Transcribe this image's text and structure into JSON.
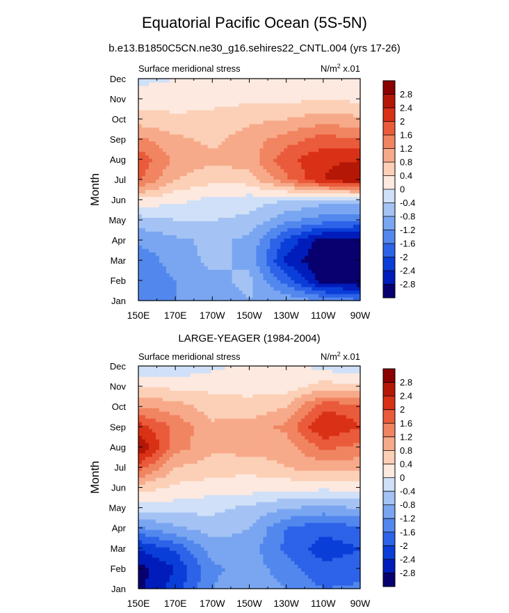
{
  "title": "Equatorial Pacific Ocean (5S-5N)",
  "subtitle": "b.e13.B1850C5CN.ne30_g16.sehires22_CNTL.004 (yrs 17-26)",
  "colors": {
    "levels": [
      "#08006e",
      "#001cbb",
      "#0a3ed8",
      "#2d63e8",
      "#5288ee",
      "#7aa6f1",
      "#a4c3f4",
      "#cfe0f8",
      "#fde9df",
      "#fcd0b7",
      "#f7aa8a",
      "#f18461",
      "#ea5b3b",
      "#d93116",
      "#b51706",
      "#8b0000"
    ]
  },
  "chart_data": [
    {
      "type": "heatmap",
      "title": "",
      "left_label": "Surface meridional stress",
      "right_label_prefix": "N/m",
      "right_label_sup": "2",
      "right_label_suffix": " x.01",
      "ylabel": "Month",
      "xlabel": "",
      "x": [
        "150E",
        "170E",
        "170W",
        "150W",
        "130W",
        "110W",
        "90W"
      ],
      "y": [
        "Jan",
        "Feb",
        "Mar",
        "Apr",
        "May",
        "Jun",
        "Jul",
        "Aug",
        "Sep",
        "Oct",
        "Nov",
        "Dec"
      ],
      "colorbar": {
        "ticks": [
          "-2.8",
          "-2.4",
          "-2",
          "-1.6",
          "-1.2",
          "-0.8",
          "-0.4",
          "0",
          "0.4",
          "0.8",
          "1.2",
          "1.6",
          "2",
          "2.4",
          "2.8"
        ],
        "bounds": [
          -3.2,
          -2.8,
          -2.4,
          -2.0,
          -1.6,
          -1.2,
          -0.8,
          -0.4,
          0,
          0.4,
          0.8,
          1.2,
          1.6,
          2.0,
          2.4,
          2.8,
          3.2
        ]
      },
      "values": [
        [
          -1.3,
          -1.2,
          -1.0,
          -0.8,
          -0.9,
          -1.2,
          -1.5
        ],
        [
          -1.6,
          -1.2,
          -0.9,
          -0.7,
          -1.8,
          -3.0,
          -3.2
        ],
        [
          -1.5,
          -1.0,
          -0.7,
          -0.9,
          -2.5,
          -3.2,
          -3.3
        ],
        [
          -1.1,
          -0.9,
          -0.7,
          -0.9,
          -2.1,
          -3.0,
          -3.0
        ],
        [
          -0.6,
          -0.4,
          -0.4,
          -0.5,
          -1.1,
          -1.4,
          -1.6
        ],
        [
          0.3,
          0.1,
          -0.1,
          -0.2,
          -0.4,
          -0.6,
          -0.5
        ],
        [
          1.7,
          0.8,
          0.5,
          0.6,
          1.5,
          2.4,
          2.8
        ],
        [
          1.9,
          1.1,
          0.9,
          1.0,
          1.9,
          2.3,
          2.4
        ],
        [
          1.3,
          0.9,
          0.7,
          1.0,
          1.4,
          1.8,
          1.6
        ],
        [
          0.6,
          0.5,
          0.5,
          0.7,
          0.8,
          1.0,
          0.9
        ],
        [
          0.2,
          0.2,
          0.3,
          0.3,
          0.3,
          0.4,
          0.3
        ],
        [
          -0.1,
          0.0,
          0.1,
          0.2,
          0.2,
          0.2,
          0.1
        ]
      ]
    },
    {
      "type": "heatmap",
      "title": "LARGE-YEAGER (1984-2004)",
      "left_label": "Surface meridional stress",
      "right_label_prefix": "N/m",
      "right_label_sup": "2",
      "right_label_suffix": " x.01",
      "ylabel": "Month",
      "xlabel": "",
      "x": [
        "150E",
        "170E",
        "170W",
        "150W",
        "130W",
        "110W",
        "90W"
      ],
      "y": [
        "Jan",
        "Feb",
        "Mar",
        "Apr",
        "May",
        "Jun",
        "Jul",
        "Aug",
        "Sep",
        "Oct",
        "Nov",
        "Dec"
      ],
      "colorbar": {
        "ticks": [
          "-2.8",
          "-2.4",
          "-2",
          "-1.6",
          "-1.2",
          "-0.8",
          "-0.4",
          "0",
          "0.4",
          "0.8",
          "1.2",
          "1.6",
          "2",
          "2.4",
          "2.8"
        ],
        "bounds": [
          -3.2,
          -2.8,
          -2.4,
          -2.0,
          -1.6,
          -1.2,
          -0.8,
          -0.4,
          0,
          0.4,
          0.8,
          1.2,
          1.6,
          2.0,
          2.4,
          2.8,
          3.2
        ]
      },
      "values": [
        [
          -2.9,
          -2.2,
          -1.2,
          -0.9,
          -1.2,
          -1.6,
          -1.5
        ],
        [
          -3.0,
          -2.4,
          -1.3,
          -1.0,
          -1.4,
          -1.9,
          -1.8
        ],
        [
          -2.4,
          -1.9,
          -1.0,
          -1.0,
          -1.7,
          -2.2,
          -2.0
        ],
        [
          -1.3,
          -0.9,
          -0.6,
          -0.8,
          -1.6,
          -1.9,
          -1.7
        ],
        [
          -0.2,
          -0.2,
          -0.3,
          -0.5,
          -0.8,
          -0.9,
          -0.8
        ],
        [
          0.6,
          0.3,
          0.2,
          0.2,
          0.1,
          0.1,
          0.1
        ],
        [
          1.8,
          0.8,
          0.6,
          0.5,
          0.8,
          1.0,
          0.9
        ],
        [
          2.8,
          1.4,
          0.9,
          1.0,
          1.0,
          1.7,
          1.5
        ],
        [
          2.2,
          1.5,
          0.9,
          1.0,
          1.3,
          2.4,
          2.0
        ],
        [
          1.2,
          1.0,
          0.6,
          0.5,
          0.8,
          1.9,
          1.8
        ],
        [
          0.4,
          0.3,
          0.3,
          0.3,
          0.2,
          0.6,
          0.5
        ],
        [
          -0.4,
          -0.3,
          -0.1,
          0.1,
          0.3,
          -0.2,
          -0.2
        ]
      ]
    }
  ]
}
